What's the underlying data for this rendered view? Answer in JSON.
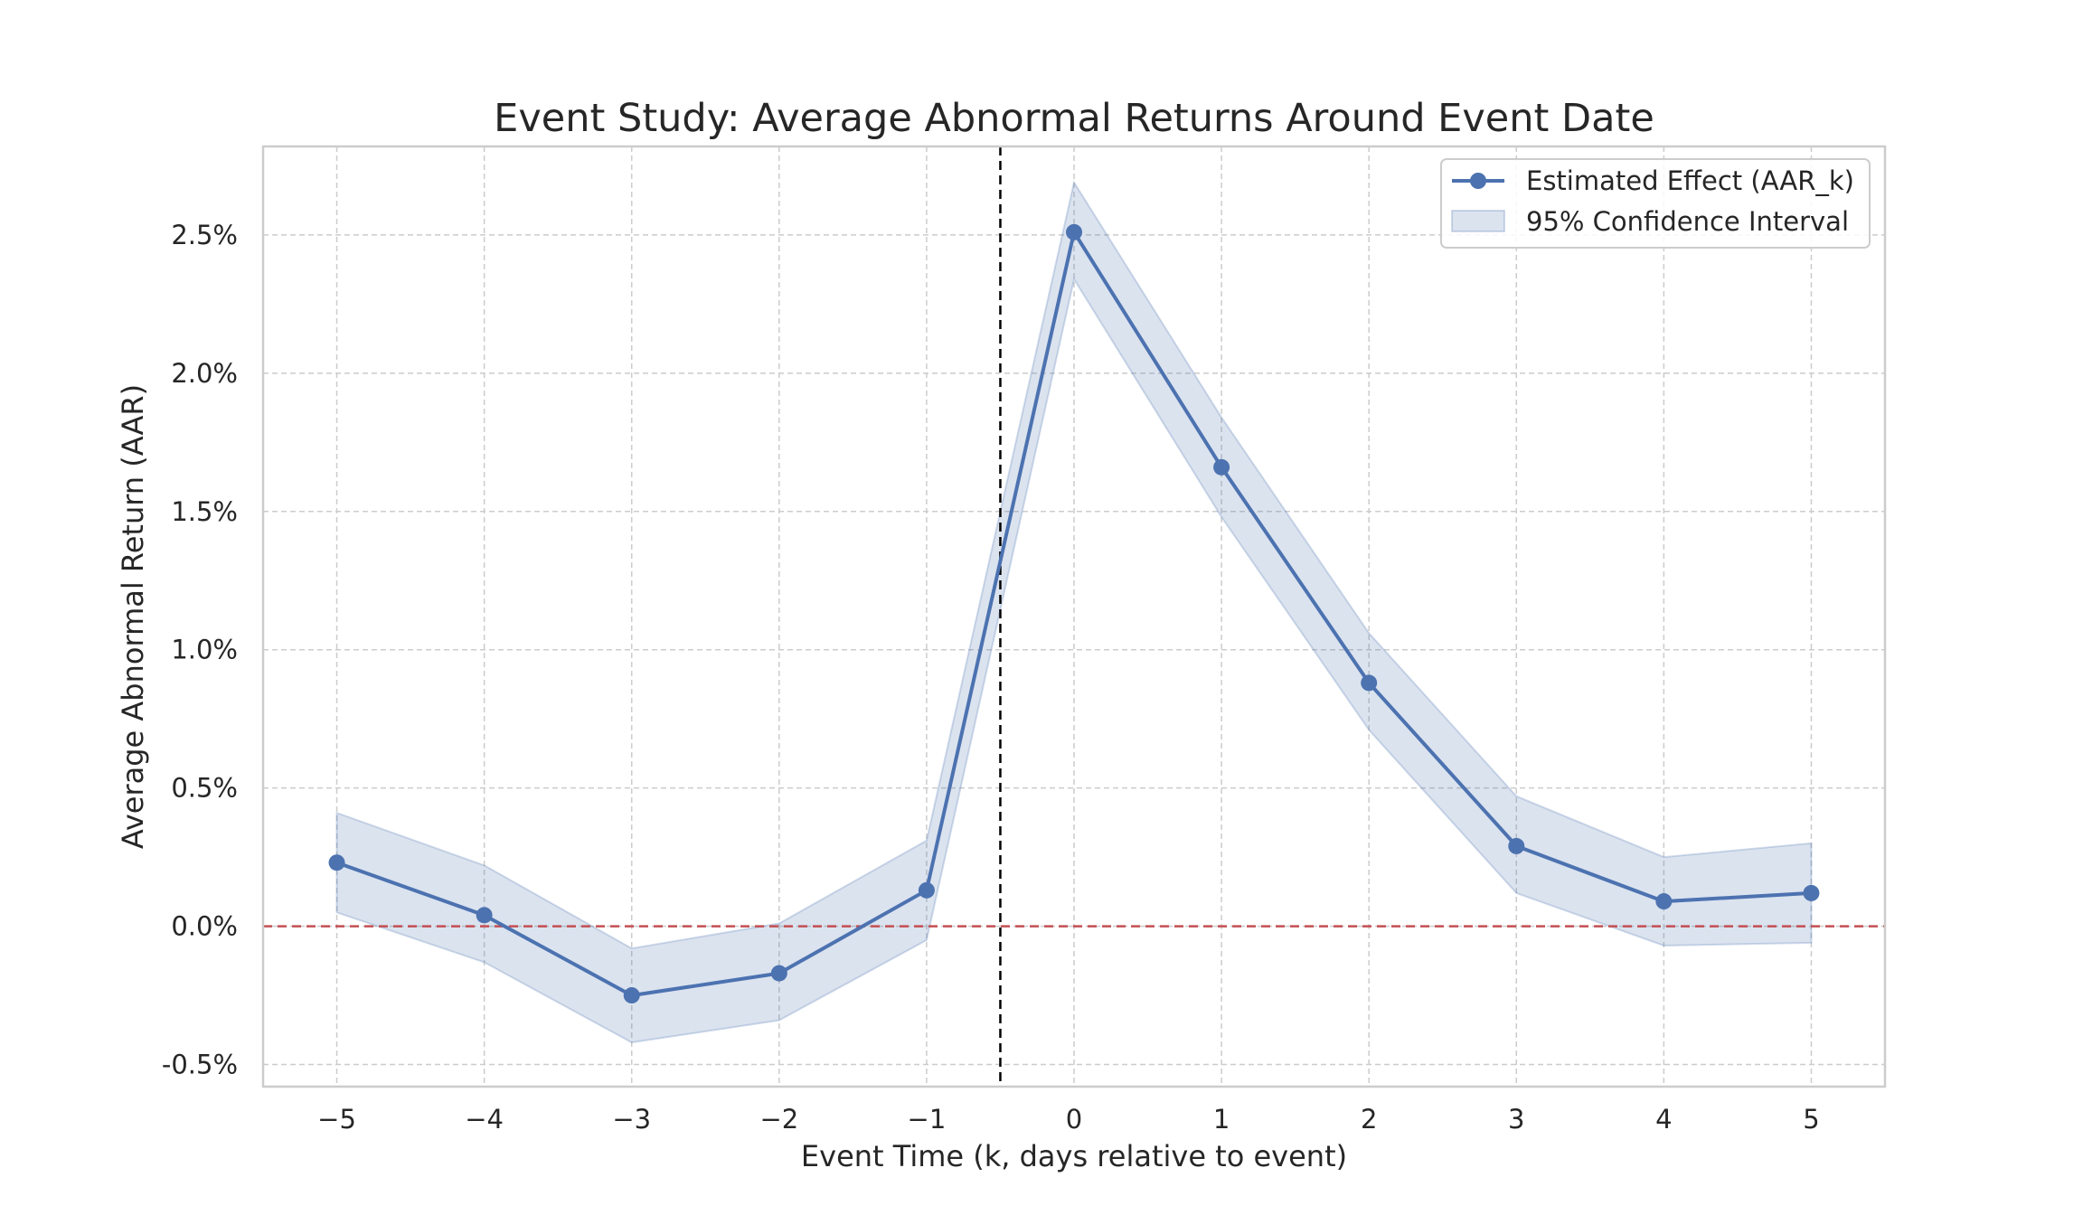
{
  "chart_data": {
    "type": "line",
    "title": "Event Study: Average Abnormal Returns Around Event Date",
    "xlabel": "Event Time (k, days relative to event)",
    "ylabel": "Average Abnormal Return (AAR)",
    "xlim": [
      -5.5,
      5.5
    ],
    "ylim": [
      -0.58,
      2.82
    ],
    "x_ticks": [
      -5,
      -4,
      -3,
      -2,
      -1,
      0,
      1,
      2,
      3,
      4,
      5
    ],
    "x_tick_labels": [
      "−5",
      "−4",
      "−3",
      "−2",
      "−1",
      "0",
      "1",
      "2",
      "3",
      "4",
      "5"
    ],
    "y_ticks": [
      -0.5,
      0.0,
      0.5,
      1.0,
      1.5,
      2.0,
      2.5
    ],
    "y_tick_labels": [
      "-0.5%",
      "0.0%",
      "0.5%",
      "1.0%",
      "1.5%",
      "2.0%",
      "2.5%"
    ],
    "y_unit": "%",
    "grid": true,
    "legend_position": "top-right",
    "x": [
      -5,
      -4,
      -3,
      -2,
      -1,
      0,
      1,
      2,
      3,
      4,
      5
    ],
    "series": [
      {
        "name": "Estimated Effect (AAR_k)",
        "values": [
          0.23,
          0.04,
          -0.25,
          -0.17,
          0.13,
          2.51,
          1.66,
          0.88,
          0.29,
          0.09,
          0.12
        ],
        "color": "#4c72b0",
        "marker": "circle"
      }
    ],
    "confidence_band": {
      "name": "95% Confidence Interval",
      "lower": [
        0.05,
        -0.13,
        -0.42,
        -0.34,
        -0.05,
        2.34,
        1.48,
        0.71,
        0.12,
        -0.07,
        -0.06
      ],
      "upper": [
        0.41,
        0.22,
        -0.08,
        0.01,
        0.31,
        2.69,
        1.84,
        1.06,
        0.47,
        0.25,
        0.3
      ],
      "color": "#4c72b0"
    },
    "reference_lines": [
      {
        "orientation": "horizontal",
        "value": 0.0,
        "color": "#c44e52",
        "style": "dashed"
      },
      {
        "orientation": "vertical",
        "value": -0.5,
        "color": "#000000",
        "style": "dashed"
      }
    ]
  }
}
